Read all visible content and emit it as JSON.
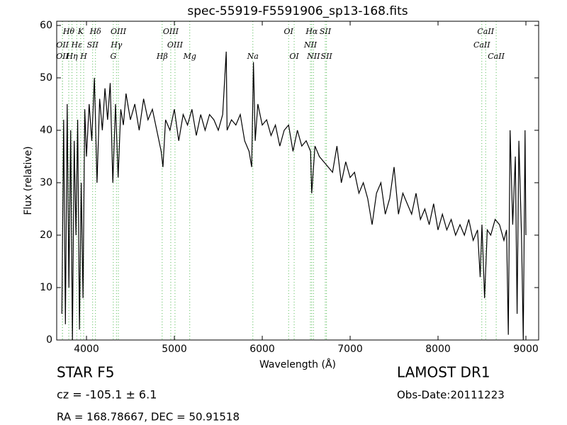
{
  "chart_data": {
    "type": "line",
    "title": "spec-55919-F5591906_sp13-168.fits",
    "xlabel": "Wavelength (Å)",
    "ylabel": "Flux (relative)",
    "color": "#000000",
    "line_color": "#55bb55",
    "x": [
      3720,
      3740,
      3760,
      3780,
      3800,
      3820,
      3840,
      3860,
      3880,
      3900,
      3920,
      3940,
      3960,
      3980,
      4000,
      4030,
      4060,
      4090,
      4120,
      4150,
      4180,
      4210,
      4240,
      4270,
      4300,
      4330,
      4360,
      4390,
      4420,
      4450,
      4500,
      4550,
      4600,
      4650,
      4700,
      4750,
      4800,
      4850,
      4870,
      4900,
      4950,
      5000,
      5050,
      5100,
      5150,
      5200,
      5250,
      5300,
      5350,
      5400,
      5450,
      5500,
      5550,
      5590,
      5600,
      5650,
      5700,
      5750,
      5800,
      5850,
      5880,
      5900,
      5920,
      5950,
      6000,
      6050,
      6100,
      6150,
      6200,
      6250,
      6300,
      6350,
      6400,
      6450,
      6500,
      6550,
      6563,
      6600,
      6650,
      6700,
      6750,
      6800,
      6850,
      6900,
      6950,
      7000,
      7050,
      7100,
      7150,
      7200,
      7250,
      7300,
      7350,
      7400,
      7450,
      7500,
      7550,
      7600,
      7650,
      7700,
      7750,
      7800,
      7850,
      7900,
      7950,
      8000,
      8050,
      8100,
      8150,
      8200,
      8250,
      8300,
      8350,
      8400,
      8450,
      8480,
      8500,
      8530,
      8560,
      8600,
      8650,
      8700,
      8750,
      8780,
      8800,
      8820,
      8850,
      8880,
      8900,
      8920,
      8950,
      8970,
      8990,
      9000
    ],
    "values": [
      5,
      42,
      3,
      45,
      10,
      40,
      0,
      38,
      20,
      42,
      2,
      30,
      8,
      44,
      35,
      45,
      38,
      50,
      30,
      46,
      40,
      48,
      42,
      49,
      30,
      45,
      31,
      44,
      41,
      47,
      42,
      45,
      40,
      46,
      42,
      44,
      40,
      36,
      33,
      42,
      40,
      44,
      38,
      43,
      41,
      44,
      39,
      43,
      40,
      43,
      42,
      40,
      43,
      55,
      40,
      42,
      41,
      43,
      38,
      36,
      33,
      53,
      38,
      45,
      41,
      42,
      39,
      41,
      37,
      40,
      41,
      36,
      40,
      37,
      38,
      36,
      28,
      37,
      35,
      34,
      33,
      32,
      37,
      30,
      34,
      31,
      32,
      28,
      30,
      27,
      22,
      28,
      30,
      24,
      27,
      33,
      24,
      28,
      26,
      24,
      28,
      23,
      25,
      22,
      26,
      21,
      24,
      21,
      23,
      20,
      22,
      20,
      23,
      19,
      21,
      12,
      22,
      8,
      21,
      20,
      23,
      22,
      19,
      21,
      1,
      40,
      22,
      35,
      5,
      38,
      20,
      0,
      40,
      20
    ],
    "xlim": [
      3661,
      9145
    ],
    "ylim": [
      0,
      60.8
    ],
    "xticks": [
      4000,
      5000,
      6000,
      7000,
      8000,
      9000
    ],
    "yticks": [
      0,
      10,
      20,
      30,
      40,
      50,
      60
    ],
    "lines": [
      {
        "name": "Hθ",
        "wavelength": 3798
      },
      {
        "name": "K",
        "wavelength": 3934
      },
      {
        "name": "Hδ",
        "wavelength": 4102
      },
      {
        "name": "OIII",
        "wavelength": 4363
      },
      {
        "name": "OIII",
        "wavelength": 4959
      },
      {
        "name": "OI",
        "wavelength": 6300
      },
      {
        "name": "Hα",
        "wavelength": 6563
      },
      {
        "name": "SII",
        "wavelength": 6717
      },
      {
        "name": "CaII",
        "wavelength": 8542
      },
      {
        "name": "OII",
        "wavelength": 3727
      },
      {
        "name": "Hε",
        "wavelength": 3889
      },
      {
        "name": "SII",
        "wavelength": 4070
      },
      {
        "name": "Hγ",
        "wavelength": 4341
      },
      {
        "name": "OIII",
        "wavelength": 5007
      },
      {
        "name": "NII",
        "wavelength": 6548
      },
      {
        "name": "CaII",
        "wavelength": 8498
      },
      {
        "name": "OII",
        "wavelength": 3726
      },
      {
        "name": "Hη",
        "wavelength": 3835
      },
      {
        "name": "H",
        "wavelength": 3968
      },
      {
        "name": "G",
        "wavelength": 4305
      },
      {
        "name": "Hβ",
        "wavelength": 4861
      },
      {
        "name": "Mg",
        "wavelength": 5175
      },
      {
        "name": "Na",
        "wavelength": 5893
      },
      {
        "name": "OI",
        "wavelength": 6363
      },
      {
        "name": "NII",
        "wavelength": 6583
      },
      {
        "name": "SII",
        "wavelength": 6731
      },
      {
        "name": "CaII",
        "wavelength": 8662
      }
    ]
  },
  "footer": {
    "object": "STAR   F5",
    "cz": "cz = -105.1  ± 6.1",
    "coords": "RA = 168.78667, DEC = 50.91518",
    "survey": "LAMOST DR1",
    "date": "Obs-Date:20111223"
  }
}
